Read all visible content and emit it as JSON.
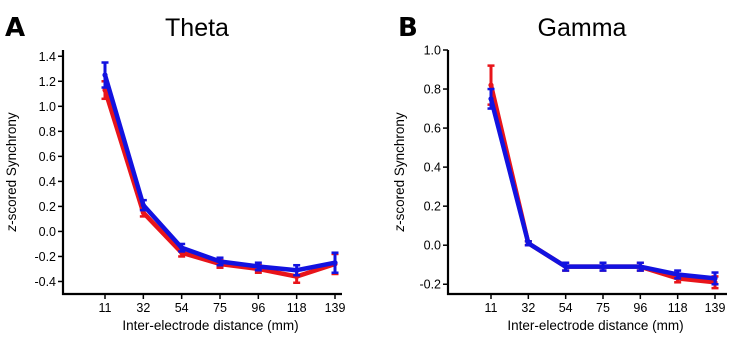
{
  "chart_data": [
    {
      "panel_label": "A",
      "type": "line",
      "title": "Theta",
      "xlabel": "Inter-electrode distance (mm)",
      "ylabel_prefix": "z",
      "ylabel_rest": "-scored Synchrony",
      "categories": [
        "11",
        "32",
        "54",
        "75",
        "96",
        "118",
        "139"
      ],
      "ylim": [
        -0.5,
        1.45
      ],
      "yticks": [
        -0.4,
        -0.2,
        0.0,
        0.2,
        0.4,
        0.6,
        0.8,
        1.0,
        1.2,
        1.4
      ],
      "ytick_labels": [
        "-0.4",
        "-0.2",
        "0.0",
        "0.2",
        "0.4",
        "0.6",
        "0.8",
        "1.0",
        "1.2",
        "1.4"
      ],
      "grid": false,
      "series": [
        {
          "color": "#e8141a",
          "values": [
            1.13,
            0.15,
            -0.17,
            -0.26,
            -0.3,
            -0.36,
            -0.26
          ],
          "errors": [
            0.07,
            0.03,
            0.03,
            0.03,
            0.03,
            0.05,
            0.08
          ]
        },
        {
          "color": "#1212e0",
          "values": [
            1.25,
            0.21,
            -0.13,
            -0.24,
            -0.28,
            -0.31,
            -0.25
          ],
          "errors": [
            0.1,
            0.04,
            0.03,
            0.03,
            0.03,
            0.04,
            0.08
          ]
        }
      ]
    },
    {
      "panel_label": "B",
      "type": "line",
      "title": "Gamma",
      "xlabel": "Inter-electrode distance (mm)",
      "ylabel_prefix": "z",
      "ylabel_rest": "-scored Synchrony",
      "categories": [
        "11",
        "32",
        "54",
        "75",
        "96",
        "118",
        "139"
      ],
      "ylim": [
        -0.25,
        1.0
      ],
      "yticks": [
        -0.2,
        0.0,
        0.2,
        0.4,
        0.6,
        0.8,
        1.0
      ],
      "ytick_labels": [
        "-0.2",
        "0.0",
        "0.2",
        "0.4",
        "0.6",
        "0.8",
        "1.0"
      ],
      "grid": false,
      "series": [
        {
          "color": "#e8141a",
          "values": [
            0.82,
            0.01,
            -0.11,
            -0.11,
            -0.11,
            -0.17,
            -0.19
          ],
          "errors": [
            0.1,
            0.01,
            0.02,
            0.02,
            0.02,
            0.02,
            0.03
          ]
        },
        {
          "color": "#1212e0",
          "values": [
            0.75,
            0.01,
            -0.11,
            -0.11,
            -0.11,
            -0.15,
            -0.17
          ],
          "errors": [
            0.05,
            0.01,
            0.02,
            0.02,
            0.02,
            0.02,
            0.03
          ]
        }
      ]
    }
  ]
}
